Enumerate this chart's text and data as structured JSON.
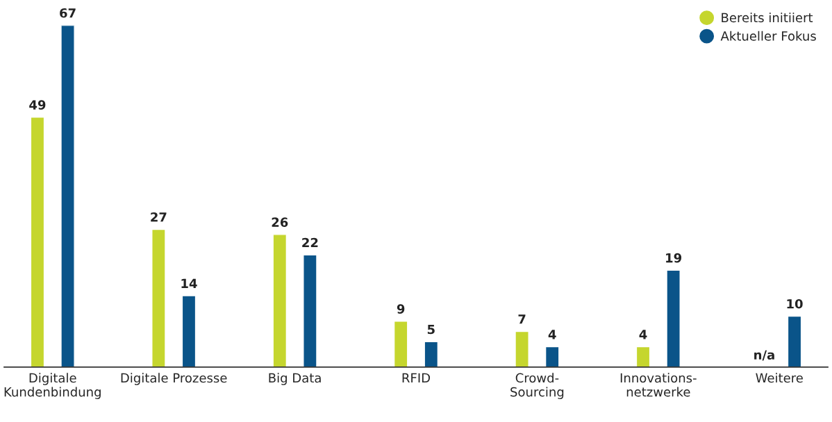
{
  "chart_data": {
    "type": "bar",
    "categories": [
      "Digitale\nKundenbindung",
      "Digitale Prozesse",
      "Big Data",
      "RFID",
      "Crowd-\nSourcing",
      "Innovations-\nnetzwerke",
      "Weitere"
    ],
    "series": [
      {
        "name": "Bereits initiiert",
        "color": "#c5d62e",
        "values": [
          49,
          27,
          26,
          9,
          7,
          4,
          null
        ],
        "value_labels": [
          "49",
          "27",
          "26",
          "9",
          "7",
          "4",
          "n/a"
        ]
      },
      {
        "name": "Aktueller Fokus",
        "color": "#0a5489",
        "values": [
          67,
          14,
          22,
          5,
          4,
          19,
          10
        ],
        "value_labels": [
          "67",
          "14",
          "22",
          "5",
          "4",
          "19",
          "10"
        ]
      }
    ],
    "legend": "top right",
    "marker": "circle",
    "tick_labels": "x",
    "grid": false
  }
}
